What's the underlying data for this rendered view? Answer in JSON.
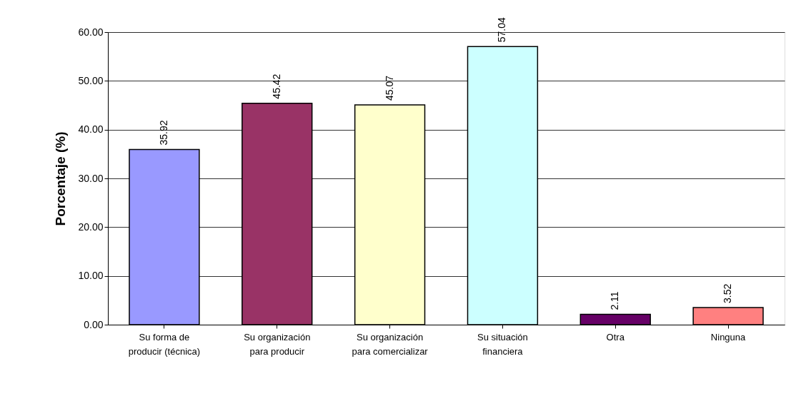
{
  "chart_data": {
    "type": "bar",
    "ylabel": "Porcentaje (%)",
    "categories": [
      "Su forma de\nproducir (técnica)",
      "Su organización\npara producir",
      "Su organización\npara comercializar",
      "Su situación\nfinanciera",
      "Otra",
      "Ninguna"
    ],
    "values": [
      35.92,
      45.42,
      45.07,
      57.04,
      2.11,
      3.52
    ],
    "colors": [
      "#9999ff",
      "#993366",
      "#ffffcc",
      "#ccffff",
      "#660066",
      "#ff8080"
    ],
    "ylim": [
      0,
      60
    ],
    "yticks": [
      {
        "value": 0,
        "label": "0.00"
      },
      {
        "value": 10,
        "label": "10.00"
      },
      {
        "value": 20,
        "label": "20.00"
      },
      {
        "value": 30,
        "label": "30.00"
      },
      {
        "value": 40,
        "label": "40.00"
      },
      {
        "value": 50,
        "label": "50.00"
      },
      {
        "value": 60,
        "label": "60.00"
      }
    ],
    "grid": "y",
    "data_labels": true
  }
}
